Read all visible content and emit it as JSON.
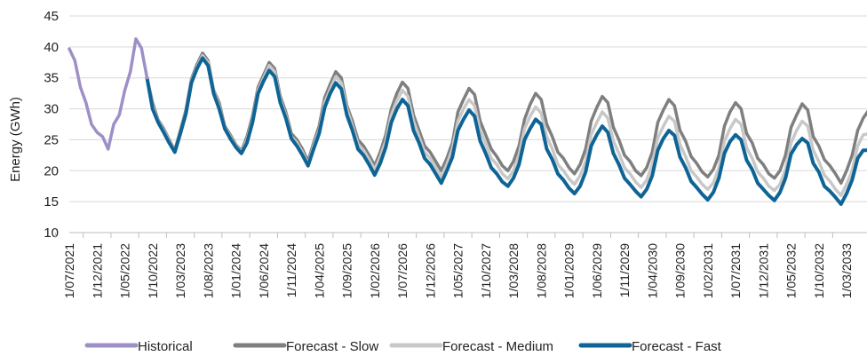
{
  "chart_data": {
    "type": "line",
    "ylabel": "Energy (GWh)",
    "ylim": [
      10,
      45
    ],
    "yticks": [
      "10",
      "15",
      "20",
      "25",
      "30",
      "35",
      "40",
      "45"
    ],
    "x_start": "1/07/2021",
    "x_end": "1/07/2033",
    "xticks": [
      "1/07/2021",
      "1/12/2021",
      "1/05/2022",
      "1/10/2022",
      "1/03/2023",
      "1/08/2023",
      "1/01/2024",
      "1/06/2024",
      "1/11/2024",
      "1/04/2025",
      "1/09/2025",
      "1/02/2026",
      "1/07/2026",
      "1/12/2026",
      "1/05/2027",
      "1/10/2027",
      "1/03/2028",
      "1/08/2028",
      "1/01/2029",
      "1/06/2029",
      "1/11/2029",
      "1/04/2030",
      "1/09/2030",
      "1/02/2031",
      "1/07/2031",
      "1/12/2031",
      "1/05/2032",
      "1/10/2032",
      "1/03/2033"
    ],
    "grid": true,
    "legend_position": "bottom",
    "series": [
      {
        "name": "Historical",
        "color": "#9e8fc7",
        "x": [
          "1/07/2021",
          "1/08/2021",
          "1/09/2021",
          "1/10/2021",
          "1/11/2021",
          "1/12/2021",
          "1/01/2022",
          "1/02/2022",
          "1/03/2022",
          "1/04/2022",
          "1/05/2022",
          "1/06/2022",
          "1/07/2022",
          "1/08/2022",
          "1/09/2022"
        ],
        "values": [
          39.7,
          37.8,
          33.5,
          31.0,
          27.5,
          26.2,
          25.5,
          23.5,
          27.5,
          29.0,
          33.0,
          36.0,
          41.3,
          39.8,
          35.0
        ]
      },
      {
        "name": "Forecast - Slow",
        "color": "#7f7f7f",
        "x": [
          "1/09/2022",
          "1/10/2022",
          "1/11/2022",
          "1/12/2022",
          "1/01/2023",
          "1/02/2023",
          "1/03/2023",
          "1/04/2023",
          "1/05/2023",
          "1/06/2023",
          "1/07/2023",
          "1/08/2023",
          "1/09/2023",
          "1/10/2023",
          "1/11/2023",
          "1/12/2023",
          "1/01/2024",
          "1/02/2024",
          "1/03/2024",
          "1/04/2024",
          "1/05/2024",
          "1/06/2024",
          "1/07/2024",
          "1/08/2024",
          "1/09/2024",
          "1/10/2024",
          "1/11/2024",
          "1/12/2024",
          "1/01/2025",
          "1/02/2025",
          "1/03/2025",
          "1/04/2025",
          "1/05/2025",
          "1/06/2025",
          "1/07/2025",
          "1/08/2025",
          "1/09/2025",
          "1/10/2025",
          "1/11/2025",
          "1/12/2025",
          "1/01/2026",
          "1/02/2026",
          "1/03/2026",
          "1/04/2026",
          "1/05/2026",
          "1/06/2026",
          "1/07/2026",
          "1/08/2026",
          "1/09/2026",
          "1/10/2026",
          "1/11/2026",
          "1/12/2026",
          "1/01/2027",
          "1/02/2027",
          "1/03/2027",
          "1/04/2027",
          "1/05/2027",
          "1/06/2027",
          "1/07/2027",
          "1/08/2027",
          "1/09/2027",
          "1/10/2027",
          "1/11/2027",
          "1/12/2027",
          "1/01/2028",
          "1/02/2028",
          "1/03/2028",
          "1/04/2028",
          "1/05/2028",
          "1/06/2028",
          "1/07/2028",
          "1/08/2028",
          "1/09/2028",
          "1/10/2028",
          "1/11/2028",
          "1/12/2028",
          "1/01/2029",
          "1/02/2029",
          "1/03/2029",
          "1/04/2029",
          "1/05/2029",
          "1/06/2029",
          "1/07/2029",
          "1/08/2029",
          "1/09/2029",
          "1/10/2029",
          "1/11/2029",
          "1/12/2029",
          "1/01/2030",
          "1/02/2030",
          "1/03/2030",
          "1/04/2030",
          "1/05/2030",
          "1/06/2030",
          "1/07/2030",
          "1/08/2030",
          "1/09/2030",
          "1/10/2030",
          "1/11/2030",
          "1/12/2030",
          "1/01/2031",
          "1/02/2031",
          "1/03/2031",
          "1/04/2031",
          "1/05/2031",
          "1/06/2031",
          "1/07/2031",
          "1/08/2031",
          "1/09/2031",
          "1/10/2031",
          "1/11/2031",
          "1/12/2031",
          "1/01/2032",
          "1/02/2032",
          "1/03/2032",
          "1/04/2032",
          "1/05/2032",
          "1/06/2032",
          "1/07/2032",
          "1/08/2032",
          "1/09/2032",
          "1/10/2032",
          "1/11/2032",
          "1/12/2032",
          "1/01/2033",
          "1/02/2033",
          "1/03/2033",
          "1/04/2033",
          "1/05/2033",
          "1/06/2033",
          "1/07/2033"
        ],
        "values": [
          35.0,
          31.0,
          28.2,
          26.8,
          25.0,
          23.3,
          26.5,
          29.8,
          34.8,
          37.2,
          39.0,
          37.8,
          33.0,
          31.0,
          27.2,
          25.8,
          24.2,
          23.2,
          25.5,
          28.8,
          33.5,
          35.5,
          37.5,
          36.5,
          32.0,
          29.5,
          26.0,
          25.0,
          23.5,
          21.5,
          24.5,
          27.2,
          31.8,
          34.0,
          36.0,
          35.0,
          30.5,
          28.0,
          25.0,
          24.0,
          22.5,
          20.8,
          23.0,
          25.8,
          30.0,
          32.5,
          34.3,
          33.3,
          29.0,
          26.5,
          24.0,
          23.0,
          21.5,
          20.0,
          22.0,
          24.5,
          29.5,
          31.5,
          33.3,
          32.3,
          28.0,
          25.8,
          23.5,
          22.3,
          20.8,
          20.0,
          21.5,
          24.0,
          28.3,
          30.7,
          32.5,
          31.5,
          27.5,
          25.5,
          23.0,
          22.0,
          20.5,
          19.5,
          21.0,
          23.5,
          28.0,
          30.2,
          32.0,
          31.0,
          27.0,
          25.0,
          22.5,
          21.5,
          20.0,
          19.2,
          20.5,
          23.0,
          27.8,
          29.8,
          31.5,
          30.5,
          26.5,
          24.8,
          22.3,
          21.2,
          19.8,
          19.0,
          20.2,
          22.5,
          27.2,
          29.5,
          31.0,
          30.0,
          26.0,
          24.5,
          22.0,
          21.0,
          19.5,
          18.8,
          20.0,
          22.5,
          27.0,
          29.0,
          30.8,
          29.8,
          25.5,
          24.0,
          21.8,
          20.8,
          19.5,
          18.0,
          20.0,
          22.5,
          26.5,
          28.5,
          29.8
        ]
      },
      {
        "name": "Forecast - Medium",
        "color": "#c8c8c8",
        "x": [
          "1/09/2022",
          "1/10/2022",
          "1/11/2022",
          "1/12/2022",
          "1/01/2023",
          "1/02/2023",
          "1/03/2023",
          "1/04/2023",
          "1/05/2023",
          "1/06/2023",
          "1/07/2023",
          "1/08/2023",
          "1/09/2023",
          "1/10/2023",
          "1/11/2023",
          "1/12/2023",
          "1/01/2024",
          "1/02/2024",
          "1/03/2024",
          "1/04/2024",
          "1/05/2024",
          "1/06/2024",
          "1/07/2024",
          "1/08/2024",
          "1/09/2024",
          "1/10/2024",
          "1/11/2024",
          "1/12/2024",
          "1/01/2025",
          "1/02/2025",
          "1/03/2025",
          "1/04/2025",
          "1/05/2025",
          "1/06/2025",
          "1/07/2025",
          "1/08/2025",
          "1/09/2025",
          "1/10/2025",
          "1/11/2025",
          "1/12/2025",
          "1/01/2026",
          "1/02/2026",
          "1/03/2026",
          "1/04/2026",
          "1/05/2026",
          "1/06/2026",
          "1/07/2026",
          "1/08/2026",
          "1/09/2026",
          "1/10/2026",
          "1/11/2026",
          "1/12/2026",
          "1/01/2027",
          "1/02/2027",
          "1/03/2027",
          "1/04/2027",
          "1/05/2027",
          "1/06/2027",
          "1/07/2027",
          "1/08/2027",
          "1/09/2027",
          "1/10/2027",
          "1/11/2027",
          "1/12/2027",
          "1/01/2028",
          "1/02/2028",
          "1/03/2028",
          "1/04/2028",
          "1/05/2028",
          "1/06/2028",
          "1/07/2028",
          "1/08/2028",
          "1/09/2028",
          "1/10/2028",
          "1/11/2028",
          "1/12/2028",
          "1/01/2029",
          "1/02/2029",
          "1/03/2029",
          "1/04/2029",
          "1/05/2029",
          "1/06/2029",
          "1/07/2029",
          "1/08/2029",
          "1/09/2029",
          "1/10/2029",
          "1/11/2029",
          "1/12/2029",
          "1/01/2030",
          "1/02/2030",
          "1/03/2030",
          "1/04/2030",
          "1/05/2030",
          "1/06/2030",
          "1/07/2030",
          "1/08/2030",
          "1/09/2030",
          "1/10/2030",
          "1/11/2030",
          "1/12/2030",
          "1/01/2031",
          "1/02/2031",
          "1/03/2031",
          "1/04/2031",
          "1/05/2031",
          "1/06/2031",
          "1/07/2031",
          "1/08/2031",
          "1/09/2031",
          "1/10/2031",
          "1/11/2031",
          "1/12/2031",
          "1/01/2032",
          "1/02/2032",
          "1/03/2032",
          "1/04/2032",
          "1/05/2032",
          "1/06/2032",
          "1/07/2032",
          "1/08/2032",
          "1/09/2032",
          "1/10/2032",
          "1/11/2032",
          "1/12/2032",
          "1/01/2033",
          "1/02/2033",
          "1/03/2033",
          "1/04/2033",
          "1/05/2033",
          "1/06/2033",
          "1/07/2033"
        ],
        "values": [
          35.0,
          30.5,
          28.0,
          26.5,
          24.8,
          23.2,
          26.2,
          29.5,
          34.5,
          36.8,
          38.6,
          37.5,
          32.8,
          30.5,
          27.0,
          25.5,
          24.0,
          23.0,
          25.0,
          28.2,
          33.0,
          35.0,
          37.0,
          36.0,
          31.5,
          29.0,
          25.5,
          24.5,
          23.0,
          21.0,
          24.0,
          26.5,
          31.0,
          33.2,
          35.2,
          34.2,
          30.0,
          27.2,
          24.3,
          23.3,
          21.8,
          20.2,
          22.2,
          24.8,
          29.0,
          31.3,
          33.0,
          32.0,
          28.0,
          25.5,
          23.0,
          22.0,
          20.5,
          19.0,
          21.0,
          23.5,
          28.0,
          30.0,
          31.5,
          30.5,
          26.5,
          24.3,
          22.0,
          21.0,
          19.5,
          18.7,
          20.0,
          22.5,
          26.8,
          28.8,
          30.3,
          29.3,
          25.5,
          23.5,
          21.0,
          20.0,
          18.7,
          17.8,
          19.2,
          21.5,
          25.8,
          27.8,
          29.5,
          28.5,
          24.8,
          22.8,
          20.5,
          19.5,
          18.2,
          17.3,
          18.5,
          21.0,
          25.3,
          27.2,
          28.8,
          28.0,
          24.2,
          22.3,
          20.0,
          19.0,
          17.8,
          17.0,
          18.0,
          20.5,
          24.8,
          26.8,
          28.3,
          27.5,
          23.7,
          22.0,
          19.8,
          18.8,
          17.5,
          16.8,
          17.8,
          20.2,
          24.5,
          26.5,
          28.0,
          27.2,
          23.3,
          21.5,
          19.3,
          18.3,
          17.0,
          16.0,
          17.8,
          20.0,
          24.0,
          25.8,
          26.0
        ]
      },
      {
        "name": "Forecast - Fast",
        "color": "#0f6496",
        "x": [
          "1/09/2022",
          "1/10/2022",
          "1/11/2022",
          "1/12/2022",
          "1/01/2023",
          "1/02/2023",
          "1/03/2023",
          "1/04/2023",
          "1/05/2023",
          "1/06/2023",
          "1/07/2023",
          "1/08/2023",
          "1/09/2023",
          "1/10/2023",
          "1/11/2023",
          "1/12/2023",
          "1/01/2024",
          "1/02/2024",
          "1/03/2024",
          "1/04/2024",
          "1/05/2024",
          "1/06/2024",
          "1/07/2024",
          "1/08/2024",
          "1/09/2024",
          "1/10/2024",
          "1/11/2024",
          "1/12/2024",
          "1/01/2025",
          "1/02/2025",
          "1/03/2025",
          "1/04/2025",
          "1/05/2025",
          "1/06/2025",
          "1/07/2025",
          "1/08/2025",
          "1/09/2025",
          "1/10/2025",
          "1/11/2025",
          "1/12/2025",
          "1/01/2026",
          "1/02/2026",
          "1/03/2026",
          "1/04/2026",
          "1/05/2026",
          "1/06/2026",
          "1/07/2026",
          "1/08/2026",
          "1/09/2026",
          "1/10/2026",
          "1/11/2026",
          "1/12/2026",
          "1/01/2027",
          "1/02/2027",
          "1/03/2027",
          "1/04/2027",
          "1/05/2027",
          "1/06/2027",
          "1/07/2027",
          "1/08/2027",
          "1/09/2027",
          "1/10/2027",
          "1/11/2027",
          "1/12/2027",
          "1/01/2028",
          "1/02/2028",
          "1/03/2028",
          "1/04/2028",
          "1/05/2028",
          "1/06/2028",
          "1/07/2028",
          "1/08/2028",
          "1/09/2028",
          "1/10/2028",
          "1/11/2028",
          "1/12/2028",
          "1/01/2029",
          "1/02/2029",
          "1/03/2029",
          "1/04/2029",
          "1/05/2029",
          "1/06/2029",
          "1/07/2029",
          "1/08/2029",
          "1/09/2029",
          "1/10/2029",
          "1/11/2029",
          "1/12/2029",
          "1/01/2030",
          "1/02/2030",
          "1/03/2030",
          "1/04/2030",
          "1/05/2030",
          "1/06/2030",
          "1/07/2030",
          "1/08/2030",
          "1/09/2030",
          "1/10/2030",
          "1/11/2030",
          "1/12/2030",
          "1/01/2031",
          "1/02/2031",
          "1/03/2031",
          "1/04/2031",
          "1/05/2031",
          "1/06/2031",
          "1/07/2031",
          "1/08/2031",
          "1/09/2031",
          "1/10/2031",
          "1/11/2031",
          "1/12/2031",
          "1/01/2032",
          "1/02/2032",
          "1/03/2032",
          "1/04/2032",
          "1/05/2032",
          "1/06/2032",
          "1/07/2032",
          "1/08/2032",
          "1/09/2032",
          "1/10/2032",
          "1/11/2032",
          "1/12/2032",
          "1/01/2033",
          "1/02/2033",
          "1/03/2033",
          "1/04/2033",
          "1/05/2033",
          "1/06/2033",
          "1/07/2033"
        ],
        "values": [
          35.0,
          30.0,
          27.8,
          26.2,
          24.5,
          23.0,
          26.0,
          29.2,
          34.2,
          36.5,
          38.2,
          37.0,
          32.5,
          30.0,
          26.8,
          25.2,
          23.8,
          22.8,
          24.5,
          27.8,
          32.5,
          34.5,
          36.2,
          35.2,
          31.0,
          28.5,
          25.2,
          24.0,
          22.5,
          20.8,
          23.5,
          26.0,
          30.2,
          32.5,
          34.2,
          33.2,
          29.0,
          26.5,
          23.5,
          22.5,
          21.0,
          19.3,
          21.2,
          23.8,
          27.8,
          30.0,
          31.5,
          30.5,
          26.5,
          24.5,
          22.0,
          21.0,
          19.5,
          18.0,
          20.0,
          22.2,
          26.5,
          28.3,
          29.8,
          28.8,
          24.8,
          22.8,
          20.5,
          19.5,
          18.2,
          17.5,
          18.8,
          21.0,
          25.0,
          26.8,
          28.3,
          27.5,
          23.5,
          21.8,
          19.5,
          18.5,
          17.2,
          16.3,
          17.5,
          19.8,
          24.0,
          25.8,
          27.2,
          26.2,
          22.8,
          21.0,
          18.8,
          17.8,
          16.7,
          15.8,
          17.0,
          19.2,
          23.3,
          25.2,
          26.5,
          25.7,
          22.2,
          20.5,
          18.3,
          17.3,
          16.2,
          15.3,
          16.5,
          18.8,
          22.8,
          24.7,
          25.8,
          25.0,
          21.7,
          20.2,
          18.0,
          17.0,
          16.0,
          15.2,
          16.5,
          18.8,
          22.7,
          24.2,
          25.2,
          24.5,
          21.2,
          19.8,
          17.5,
          16.7,
          15.7,
          14.6,
          16.3,
          18.5,
          22.0,
          23.3,
          23.3
        ]
      }
    ]
  }
}
